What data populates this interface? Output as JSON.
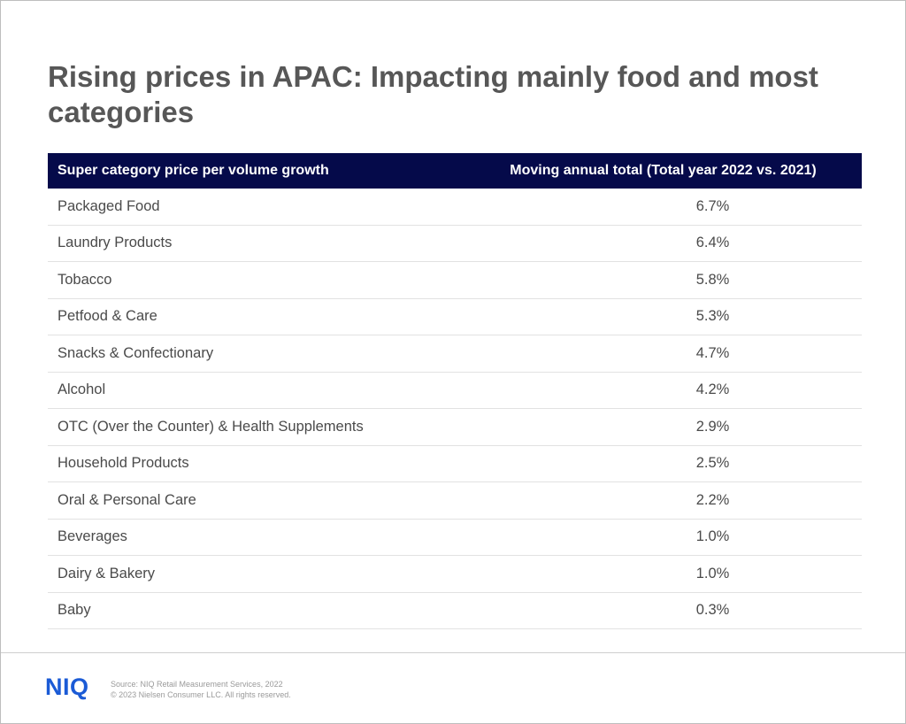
{
  "title": "Rising prices in APAC: Impacting mainly food and most categories",
  "table": {
    "headers": [
      "Super category price per volume growth",
      "Moving annual total (Total year 2022 vs. 2021)"
    ],
    "rows": [
      {
        "category": "Packaged Food",
        "value": "6.7%"
      },
      {
        "category": "Laundry Products",
        "value": "6.4%"
      },
      {
        "category": "Tobacco",
        "value": "5.8%"
      },
      {
        "category": "Petfood & Care",
        "value": "5.3%"
      },
      {
        "category": "Snacks & Confectionary",
        "value": "4.7%"
      },
      {
        "category": "Alcohol",
        "value": "4.2%"
      },
      {
        "category": "OTC (Over the Counter) & Health Supplements",
        "value": "2.9%"
      },
      {
        "category": "Household Products",
        "value": "2.5%"
      },
      {
        "category": "Oral & Personal Care",
        "value": "2.2%"
      },
      {
        "category": "Beverages",
        "value": "1.0%"
      },
      {
        "category": "Dairy & Bakery",
        "value": "1.0%"
      },
      {
        "category": "Baby",
        "value": "0.3%"
      }
    ]
  },
  "footer": {
    "logo": "NIQ",
    "source": "Source: NIQ Retail Measurement Services, 2022",
    "copyright": "© 2023 Nielsen Consumer LLC. All rights reserved."
  },
  "colors": {
    "header_bg": "#050a4a",
    "title": "#575757",
    "logo": "#1b5bd6"
  }
}
